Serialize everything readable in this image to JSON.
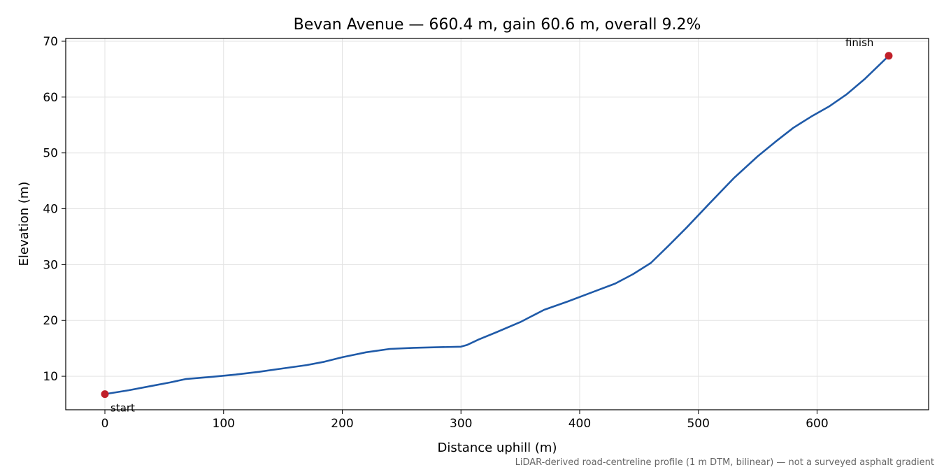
{
  "chart_data": {
    "type": "line",
    "title": "Bevan Avenue — 660.4 m, gain 60.6 m, overall 9.2%",
    "xlabel": "Distance uphill (m)",
    "ylabel": "Elevation (m)",
    "xlim": [
      -33,
      694
    ],
    "ylim": [
      4,
      70.5
    ],
    "xticks": [
      0,
      100,
      200,
      300,
      400,
      500,
      600
    ],
    "xtick_labels": [
      "0",
      "100",
      "200",
      "300",
      "400",
      "500",
      "600"
    ],
    "yticks": [
      10,
      20,
      30,
      40,
      50,
      60,
      70
    ],
    "ytick_labels": [
      "10",
      "20",
      "30",
      "40",
      "50",
      "60",
      "70"
    ],
    "grid": true,
    "line_color": "#1f5aa8",
    "marker_color": "#c0202a",
    "series": [
      {
        "x": [
          0,
          20,
          40,
          55,
          68,
          90,
          110,
          130,
          150,
          170,
          185,
          200,
          220,
          240,
          260,
          280,
          300,
          305,
          315,
          330,
          350,
          370,
          390,
          410,
          430,
          445,
          460,
          475,
          490,
          510,
          530,
          550,
          565,
          580,
          595,
          610,
          625,
          640,
          660.4
        ],
        "y": [
          6.8,
          7.5,
          8.3,
          8.9,
          9.5,
          9.9,
          10.3,
          10.8,
          11.4,
          12.0,
          12.6,
          13.4,
          14.3,
          14.9,
          15.1,
          15.2,
          15.3,
          15.6,
          16.6,
          17.9,
          19.7,
          21.9,
          23.4,
          25.0,
          26.6,
          28.3,
          30.3,
          33.4,
          36.6,
          41.1,
          45.5,
          49.4,
          52.0,
          54.5,
          56.5,
          58.3,
          60.5,
          63.2,
          67.4
        ]
      }
    ],
    "annotations": [
      {
        "text": "start",
        "x": 0,
        "y": 6.8
      },
      {
        "text": "finish",
        "x": 660.4,
        "y": 67.4
      }
    ],
    "footnote": "LiDAR-derived road-centreline profile (1 m DTM, bilinear) — not a surveyed asphalt gradient"
  }
}
